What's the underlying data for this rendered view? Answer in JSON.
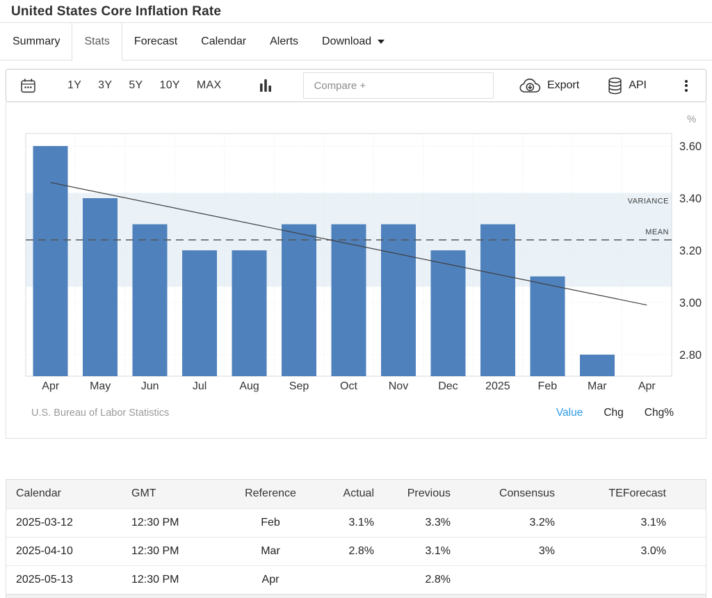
{
  "page": {
    "title": "United States Core Inflation Rate"
  },
  "tabs": {
    "items": [
      {
        "label": "Summary"
      },
      {
        "label": "Stats",
        "active": true
      },
      {
        "label": "Forecast"
      },
      {
        "label": "Calendar"
      },
      {
        "label": "Alerts"
      },
      {
        "label": "Download",
        "caret": true
      }
    ]
  },
  "toolbar": {
    "ranges": [
      "1Y",
      "3Y",
      "5Y",
      "10Y",
      "MAX"
    ],
    "compare_placeholder": "Compare +",
    "export_label": "Export",
    "api_label": "API"
  },
  "chart": {
    "source": "U.S. Bureau of Labor Statistics",
    "variance_label": "VARIANCE",
    "mean_label": "MEAN",
    "toggles": [
      {
        "label": "Value",
        "active": true
      },
      {
        "label": "Chg"
      },
      {
        "label": "Chg%"
      }
    ]
  },
  "chart_data": {
    "type": "bar",
    "title": "United States Core Inflation Rate",
    "unit": "%",
    "categories": [
      "Apr",
      "May",
      "Jun",
      "Jul",
      "Aug",
      "Sep",
      "Oct",
      "Nov",
      "Dec",
      "2025",
      "Feb",
      "Mar",
      "Apr"
    ],
    "values": [
      3.6,
      3.4,
      3.3,
      3.2,
      3.2,
      3.3,
      3.3,
      3.3,
      3.2,
      3.3,
      3.1,
      2.8,
      null
    ],
    "ylim": [
      2.717,
      3.648
    ],
    "yticks": [
      3.6,
      3.4,
      3.2,
      3.0,
      2.8
    ],
    "mean": 3.24,
    "variance_band": [
      3.06,
      3.42
    ],
    "trend_line": {
      "start_index": 0,
      "start_value": 3.46,
      "end_index": 12,
      "end_value": 2.99
    },
    "bar_color": "#4f81bd",
    "band_color": "#eaf2f8",
    "grid": true,
    "legend_position": "none"
  },
  "table": {
    "headers": [
      "Calendar",
      "GMT",
      "Reference",
      "Actual",
      "Previous",
      "Consensus",
      "TEForecast"
    ],
    "alignments": [
      "left",
      "left",
      "center",
      "right",
      "right",
      "right",
      "right"
    ],
    "rows": [
      [
        "2025-03-12",
        "12:30 PM",
        "Feb",
        "3.1%",
        "3.3%",
        "3.2%",
        "3.1%"
      ],
      [
        "2025-04-10",
        "12:30 PM",
        "Mar",
        "2.8%",
        "3.1%",
        "3%",
        "3.0%"
      ],
      [
        "2025-05-13",
        "12:30 PM",
        "Apr",
        "",
        "2.8%",
        "",
        ""
      ]
    ]
  }
}
